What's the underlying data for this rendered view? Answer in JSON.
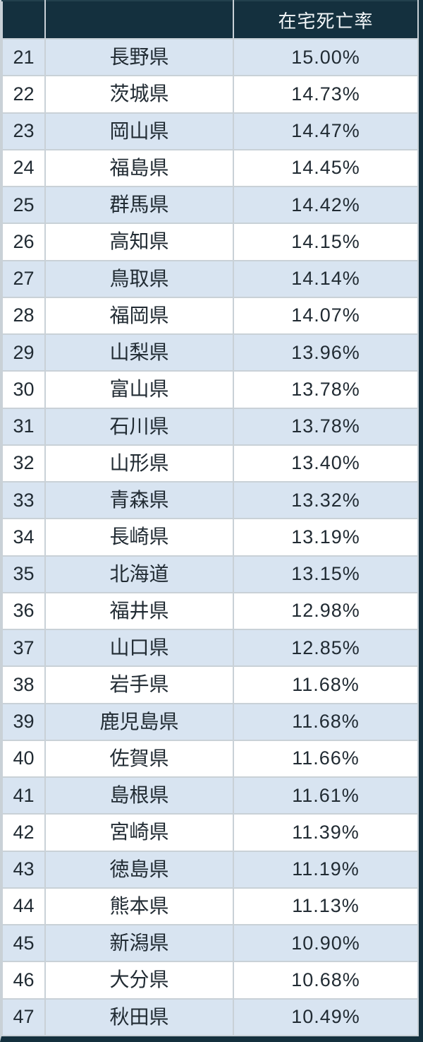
{
  "chart_data": {
    "type": "table",
    "title": "",
    "header": {
      "rank_label": "",
      "prefecture_label": "",
      "rate_label": "在宅死亡率"
    },
    "rows": [
      {
        "rank": "21",
        "prefecture": "長野県",
        "rate": "15.00%"
      },
      {
        "rank": "22",
        "prefecture": "茨城県",
        "rate": "14.73%"
      },
      {
        "rank": "23",
        "prefecture": "岡山県",
        "rate": "14.47%"
      },
      {
        "rank": "24",
        "prefecture": "福島県",
        "rate": "14.45%"
      },
      {
        "rank": "25",
        "prefecture": "群馬県",
        "rate": "14.42%"
      },
      {
        "rank": "26",
        "prefecture": "高知県",
        "rate": "14.15%"
      },
      {
        "rank": "27",
        "prefecture": "鳥取県",
        "rate": "14.14%"
      },
      {
        "rank": "28",
        "prefecture": "福岡県",
        "rate": "14.07%"
      },
      {
        "rank": "29",
        "prefecture": "山梨県",
        "rate": "13.96%"
      },
      {
        "rank": "30",
        "prefecture": "富山県",
        "rate": "13.78%"
      },
      {
        "rank": "31",
        "prefecture": "石川県",
        "rate": "13.78%"
      },
      {
        "rank": "32",
        "prefecture": "山形県",
        "rate": "13.40%"
      },
      {
        "rank": "33",
        "prefecture": "青森県",
        "rate": "13.32%"
      },
      {
        "rank": "34",
        "prefecture": "長崎県",
        "rate": "13.19%"
      },
      {
        "rank": "35",
        "prefecture": "北海道",
        "rate": "13.15%"
      },
      {
        "rank": "36",
        "prefecture": "福井県",
        "rate": "12.98%"
      },
      {
        "rank": "37",
        "prefecture": "山口県",
        "rate": "12.85%"
      },
      {
        "rank": "38",
        "prefecture": "岩手県",
        "rate": "11.68%"
      },
      {
        "rank": "39",
        "prefecture": "鹿児島県",
        "rate": "11.68%"
      },
      {
        "rank": "40",
        "prefecture": "佐賀県",
        "rate": "11.66%"
      },
      {
        "rank": "41",
        "prefecture": "島根県",
        "rate": "11.61%"
      },
      {
        "rank": "42",
        "prefecture": "宮崎県",
        "rate": "11.39%"
      },
      {
        "rank": "43",
        "prefecture": "徳島県",
        "rate": "11.19%"
      },
      {
        "rank": "44",
        "prefecture": "熊本県",
        "rate": "11.13%"
      },
      {
        "rank": "45",
        "prefecture": "新潟県",
        "rate": "10.90%"
      },
      {
        "rank": "46",
        "prefecture": "大分県",
        "rate": "10.68%"
      },
      {
        "rank": "47",
        "prefecture": "秋田県",
        "rate": "10.49%"
      }
    ],
    "layout": {
      "striped": true,
      "first_data_row_shaded": true,
      "grid": true,
      "legend": "none"
    }
  },
  "colors": {
    "header_bg": "#14303e",
    "header_text": "#f2f6f8",
    "row_alt_bg": "#d8e4f1",
    "row_bg": "#ffffff",
    "grid_line": "#c9d1d7",
    "outer_edge": "#14303e",
    "body_text": "#212b33"
  }
}
